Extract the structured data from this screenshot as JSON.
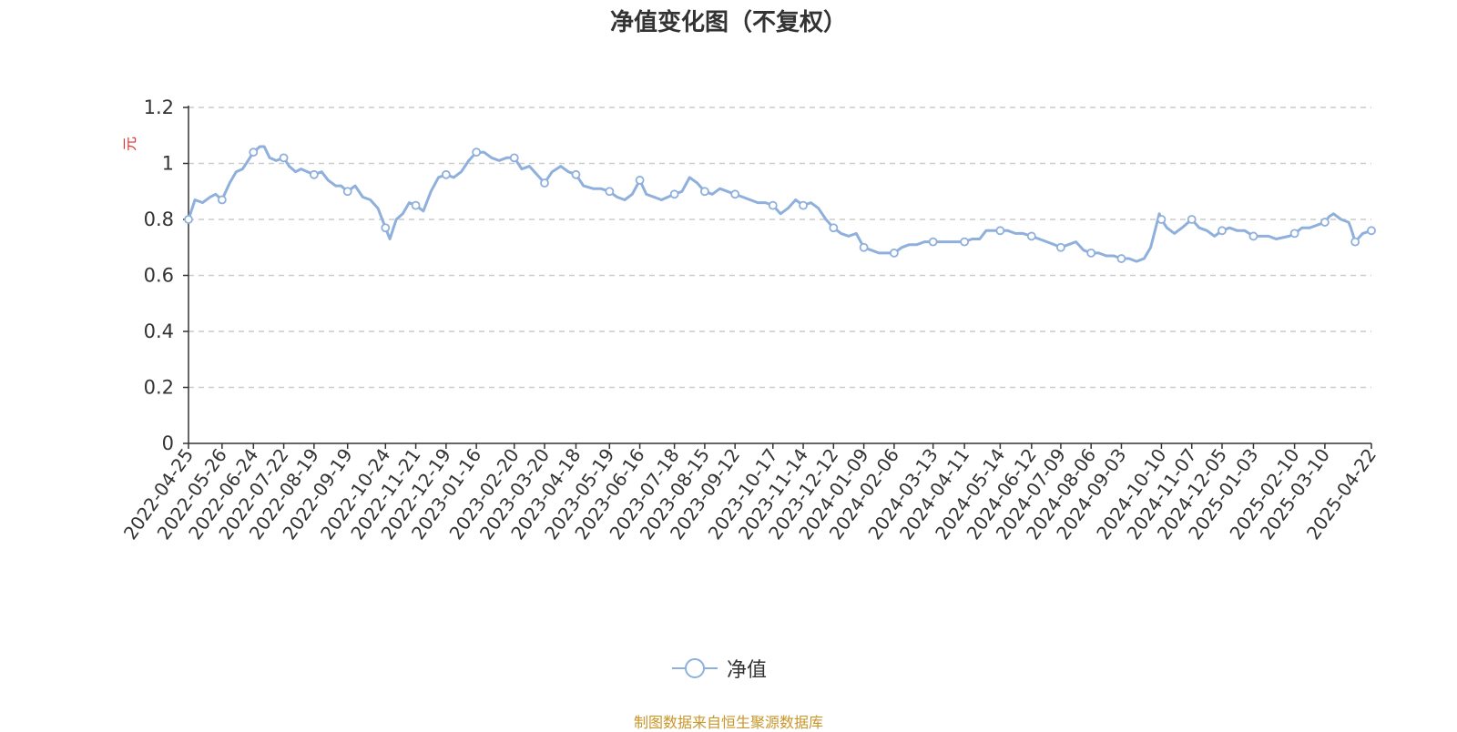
{
  "title": "净值变化图（不复权）",
  "source_note": "制图数据来自恒生聚源数据库",
  "colors": {
    "series": "#8fb0dc",
    "axis": "#333333",
    "grid": "#cccccc",
    "ylabel": "#e03030",
    "source": "#c8962a",
    "marker_fill": "#ffffff"
  },
  "legend": {
    "label": "净值",
    "icon": "line-circle-marker-icon"
  },
  "chart_data": {
    "type": "line",
    "title": "净值变化图（不复权）",
    "xlabel": "",
    "ylabel": "元",
    "ylim": [
      0,
      1.2
    ],
    "yticks": [
      "0",
      "0.2",
      "0.4",
      "0.6",
      "0.8",
      "1",
      "1.2"
    ],
    "grid": "horizontal dashed",
    "legend_position": "bottom-center",
    "x_range": [
      "2022-04-25",
      "2025-04-22"
    ],
    "x_tick_labels": [
      "2022-04-25",
      "2022-05-26",
      "2022-06-24",
      "2022-07-22",
      "2022-08-19",
      "2022-09-19",
      "2022-10-24",
      "2022-11-21",
      "2022-12-19",
      "2023-01-16",
      "2023-02-20",
      "2023-03-20",
      "2023-04-18",
      "2023-05-19",
      "2023-06-16",
      "2023-07-18",
      "2023-08-15",
      "2023-09-12",
      "2023-10-17",
      "2023-11-14",
      "2023-12-12",
      "2024-01-09",
      "2024-02-06",
      "2024-03-13",
      "2024-04-11",
      "2024-05-14",
      "2024-06-12",
      "2024-07-09",
      "2024-08-06",
      "2024-09-03",
      "2024-10-10",
      "2024-11-07",
      "2024-12-05",
      "2025-01-03",
      "2025-02-10",
      "2025-03-10",
      "2025-04-22"
    ],
    "series": [
      {
        "name": "净值",
        "values": [
          [
            "2022-04-25",
            0.8
          ],
          [
            "2022-05-01",
            0.87
          ],
          [
            "2022-05-08",
            0.86
          ],
          [
            "2022-05-15",
            0.88
          ],
          [
            "2022-05-20",
            0.89
          ],
          [
            "2022-05-26",
            0.87
          ],
          [
            "2022-06-02",
            0.93
          ],
          [
            "2022-06-08",
            0.97
          ],
          [
            "2022-06-14",
            0.98
          ],
          [
            "2022-06-19",
            1.01
          ],
          [
            "2022-06-24",
            1.04
          ],
          [
            "2022-06-30",
            1.06
          ],
          [
            "2022-07-04",
            1.06
          ],
          [
            "2022-07-09",
            1.02
          ],
          [
            "2022-07-15",
            1.01
          ],
          [
            "2022-07-22",
            1.02
          ],
          [
            "2022-07-27",
            0.99
          ],
          [
            "2022-08-02",
            0.97
          ],
          [
            "2022-08-07",
            0.98
          ],
          [
            "2022-08-13",
            0.97
          ],
          [
            "2022-08-19",
            0.96
          ],
          [
            "2022-08-26",
            0.97
          ],
          [
            "2022-09-01",
            0.94
          ],
          [
            "2022-09-08",
            0.92
          ],
          [
            "2022-09-13",
            0.92
          ],
          [
            "2022-09-19",
            0.9
          ],
          [
            "2022-09-26",
            0.92
          ],
          [
            "2022-10-03",
            0.88
          ],
          [
            "2022-10-10",
            0.87
          ],
          [
            "2022-10-17",
            0.84
          ],
          [
            "2022-10-24",
            0.77
          ],
          [
            "2022-10-28",
            0.73
          ],
          [
            "2022-11-03",
            0.8
          ],
          [
            "2022-11-09",
            0.82
          ],
          [
            "2022-11-15",
            0.86
          ],
          [
            "2022-11-21",
            0.85
          ],
          [
            "2022-11-28",
            0.83
          ],
          [
            "2022-12-05",
            0.9
          ],
          [
            "2022-12-12",
            0.95
          ],
          [
            "2022-12-19",
            0.96
          ],
          [
            "2022-12-26",
            0.95
          ],
          [
            "2023-01-02",
            0.97
          ],
          [
            "2023-01-09",
            1.01
          ],
          [
            "2023-01-16",
            1.04
          ],
          [
            "2023-01-23",
            1.04
          ],
          [
            "2023-01-30",
            1.02
          ],
          [
            "2023-02-06",
            1.01
          ],
          [
            "2023-02-13",
            1.02
          ],
          [
            "2023-02-20",
            1.02
          ],
          [
            "2023-02-27",
            0.98
          ],
          [
            "2023-03-06",
            0.99
          ],
          [
            "2023-03-13",
            0.96
          ],
          [
            "2023-03-20",
            0.93
          ],
          [
            "2023-03-27",
            0.97
          ],
          [
            "2023-04-04",
            0.99
          ],
          [
            "2023-04-11",
            0.97
          ],
          [
            "2023-04-18",
            0.96
          ],
          [
            "2023-04-25",
            0.92
          ],
          [
            "2023-05-04",
            0.91
          ],
          [
            "2023-05-11",
            0.91
          ],
          [
            "2023-05-19",
            0.9
          ],
          [
            "2023-05-26",
            0.88
          ],
          [
            "2023-06-02",
            0.87
          ],
          [
            "2023-06-09",
            0.89
          ],
          [
            "2023-06-16",
            0.94
          ],
          [
            "2023-06-22",
            0.89
          ],
          [
            "2023-06-29",
            0.88
          ],
          [
            "2023-07-06",
            0.87
          ],
          [
            "2023-07-12",
            0.88
          ],
          [
            "2023-07-18",
            0.89
          ],
          [
            "2023-07-25",
            0.9
          ],
          [
            "2023-08-01",
            0.95
          ],
          [
            "2023-08-08",
            0.93
          ],
          [
            "2023-08-15",
            0.9
          ],
          [
            "2023-08-22",
            0.89
          ],
          [
            "2023-08-29",
            0.91
          ],
          [
            "2023-09-05",
            0.9
          ],
          [
            "2023-09-12",
            0.89
          ],
          [
            "2023-09-19",
            0.88
          ],
          [
            "2023-09-26",
            0.87
          ],
          [
            "2023-10-03",
            0.86
          ],
          [
            "2023-10-10",
            0.86
          ],
          [
            "2023-10-17",
            0.85
          ],
          [
            "2023-10-24",
            0.82
          ],
          [
            "2023-10-31",
            0.84
          ],
          [
            "2023-11-07",
            0.87
          ],
          [
            "2023-11-14",
            0.85
          ],
          [
            "2023-11-21",
            0.86
          ],
          [
            "2023-11-28",
            0.84
          ],
          [
            "2023-12-05",
            0.8
          ],
          [
            "2023-12-12",
            0.77
          ],
          [
            "2023-12-19",
            0.75
          ],
          [
            "2023-12-26",
            0.74
          ],
          [
            "2024-01-02",
            0.75
          ],
          [
            "2024-01-09",
            0.7
          ],
          [
            "2024-01-16",
            0.69
          ],
          [
            "2024-01-23",
            0.68
          ],
          [
            "2024-01-30",
            0.68
          ],
          [
            "2024-02-06",
            0.68
          ],
          [
            "2024-02-13",
            0.7
          ],
          [
            "2024-02-20",
            0.71
          ],
          [
            "2024-02-27",
            0.71
          ],
          [
            "2024-03-05",
            0.72
          ],
          [
            "2024-03-13",
            0.72
          ],
          [
            "2024-03-20",
            0.72
          ],
          [
            "2024-03-27",
            0.72
          ],
          [
            "2024-04-04",
            0.72
          ],
          [
            "2024-04-11",
            0.72
          ],
          [
            "2024-04-18",
            0.73
          ],
          [
            "2024-04-25",
            0.73
          ],
          [
            "2024-05-01",
            0.76
          ],
          [
            "2024-05-08",
            0.76
          ],
          [
            "2024-05-14",
            0.76
          ],
          [
            "2024-05-21",
            0.76
          ],
          [
            "2024-05-28",
            0.75
          ],
          [
            "2024-06-04",
            0.75
          ],
          [
            "2024-06-12",
            0.74
          ],
          [
            "2024-06-19",
            0.73
          ],
          [
            "2024-06-26",
            0.72
          ],
          [
            "2024-07-03",
            0.71
          ],
          [
            "2024-07-09",
            0.7
          ],
          [
            "2024-07-16",
            0.71
          ],
          [
            "2024-07-23",
            0.72
          ],
          [
            "2024-07-30",
            0.69
          ],
          [
            "2024-08-06",
            0.68
          ],
          [
            "2024-08-13",
            0.68
          ],
          [
            "2024-08-20",
            0.67
          ],
          [
            "2024-08-27",
            0.67
          ],
          [
            "2024-09-03",
            0.66
          ],
          [
            "2024-09-10",
            0.66
          ],
          [
            "2024-09-17",
            0.65
          ],
          [
            "2024-09-24",
            0.66
          ],
          [
            "2024-09-30",
            0.7
          ],
          [
            "2024-10-08",
            0.82
          ],
          [
            "2024-10-10",
            0.8
          ],
          [
            "2024-10-15",
            0.77
          ],
          [
            "2024-10-22",
            0.75
          ],
          [
            "2024-10-29",
            0.77
          ],
          [
            "2024-11-07",
            0.8
          ],
          [
            "2024-11-14",
            0.77
          ],
          [
            "2024-11-21",
            0.76
          ],
          [
            "2024-11-28",
            0.74
          ],
          [
            "2024-12-05",
            0.76
          ],
          [
            "2024-12-12",
            0.77
          ],
          [
            "2024-12-19",
            0.76
          ],
          [
            "2024-12-26",
            0.76
          ],
          [
            "2025-01-03",
            0.74
          ],
          [
            "2025-01-10",
            0.74
          ],
          [
            "2025-01-17",
            0.74
          ],
          [
            "2025-01-24",
            0.73
          ],
          [
            "2025-02-05",
            0.74
          ],
          [
            "2025-02-10",
            0.75
          ],
          [
            "2025-02-17",
            0.77
          ],
          [
            "2025-02-24",
            0.77
          ],
          [
            "2025-03-03",
            0.78
          ],
          [
            "2025-03-10",
            0.79
          ],
          [
            "2025-03-14",
            0.81
          ],
          [
            "2025-03-18",
            0.82
          ],
          [
            "2025-03-25",
            0.8
          ],
          [
            "2025-04-01",
            0.79
          ],
          [
            "2025-04-03",
            0.77
          ],
          [
            "2025-04-07",
            0.72
          ],
          [
            "2025-04-14",
            0.75
          ],
          [
            "2025-04-22",
            0.76
          ]
        ]
      }
    ],
    "markers": [
      [
        "2022-04-25",
        0.8
      ],
      [
        "2022-05-26",
        0.87
      ],
      [
        "2022-06-24",
        1.04
      ],
      [
        "2022-07-22",
        1.02
      ],
      [
        "2022-08-19",
        0.96
      ],
      [
        "2022-09-19",
        0.9
      ],
      [
        "2022-10-24",
        0.77
      ],
      [
        "2022-11-21",
        0.85
      ],
      [
        "2022-12-19",
        0.96
      ],
      [
        "2023-01-16",
        1.04
      ],
      [
        "2023-02-20",
        1.02
      ],
      [
        "2023-03-20",
        0.93
      ],
      [
        "2023-04-18",
        0.96
      ],
      [
        "2023-05-19",
        0.9
      ],
      [
        "2023-06-16",
        0.94
      ],
      [
        "2023-07-18",
        0.89
      ],
      [
        "2023-08-15",
        0.9
      ],
      [
        "2023-09-12",
        0.89
      ],
      [
        "2023-10-17",
        0.85
      ],
      [
        "2023-11-14",
        0.85
      ],
      [
        "2023-12-12",
        0.77
      ],
      [
        "2024-01-09",
        0.7
      ],
      [
        "2024-02-06",
        0.68
      ],
      [
        "2024-03-13",
        0.72
      ],
      [
        "2024-04-11",
        0.72
      ],
      [
        "2024-05-14",
        0.76
      ],
      [
        "2024-06-12",
        0.74
      ],
      [
        "2024-07-09",
        0.7
      ],
      [
        "2024-08-06",
        0.68
      ],
      [
        "2024-09-03",
        0.66
      ],
      [
        "2024-10-10",
        0.8
      ],
      [
        "2024-11-07",
        0.8
      ],
      [
        "2024-12-05",
        0.76
      ],
      [
        "2025-01-03",
        0.74
      ],
      [
        "2025-02-10",
        0.75
      ],
      [
        "2025-03-10",
        0.79
      ],
      [
        "2025-04-07",
        0.72
      ],
      [
        "2025-04-22",
        0.76
      ]
    ]
  }
}
